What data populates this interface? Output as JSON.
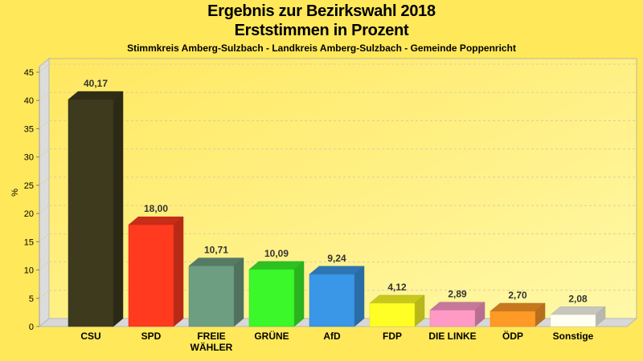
{
  "chart_data": {
    "type": "bar",
    "title": "Ergebnis zur Bezirkswahl 2018",
    "subtitle": "Erststimmen in Prozent",
    "caption": "Stimmkreis Amberg-Sulzbach - Landkreis Amberg-Sulzbach - Gemeinde Poppenricht",
    "xlabel": "",
    "ylabel": "%",
    "ylim": [
      0,
      45
    ],
    "yticks": [
      0,
      5,
      10,
      15,
      20,
      25,
      30,
      35,
      40,
      45
    ],
    "grid": true,
    "categories": [
      "CSU",
      "SPD",
      "FREIE WÄHLER",
      "GRÜNE",
      "AfD",
      "FDP",
      "DIE LINKE",
      "ÖDP",
      "Sonstige"
    ],
    "category_lines": [
      [
        "CSU"
      ],
      [
        "SPD"
      ],
      [
        "FREIE",
        "WÄHLER"
      ],
      [
        "GRÜNE"
      ],
      [
        "AfD"
      ],
      [
        "FDP"
      ],
      [
        "DIE LINKE"
      ],
      [
        "ÖDP"
      ],
      [
        "Sonstige"
      ]
    ],
    "values": [
      40.17,
      18.0,
      10.71,
      10.09,
      9.24,
      4.12,
      2.89,
      2.7,
      2.08
    ],
    "value_labels": [
      "40,17",
      "18,00",
      "10,71",
      "10,09",
      "9,24",
      "4,12",
      "2,89",
      "2,70",
      "2,08"
    ],
    "colors": [
      "#3D3A1E",
      "#FF3A1E",
      "#6E9E82",
      "#3AF82A",
      "#3A96E6",
      "#FFFF26",
      "#FF9AC6",
      "#FF9A26",
      "#FFFFF2"
    ]
  }
}
